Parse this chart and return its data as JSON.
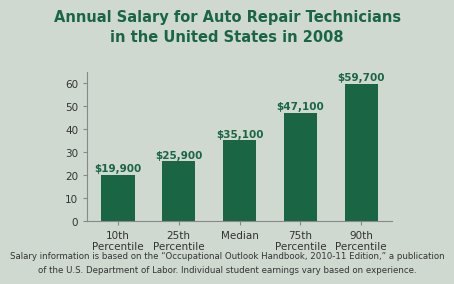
{
  "title": "Annual Salary for Auto Repair Technicians\nin the United States in 2008",
  "categories": [
    "10th\nPercentile",
    "25th\nPercentile",
    "Median",
    "75th\nPercentile",
    "90th\nPercentile"
  ],
  "values": [
    19.9,
    25.9,
    35.1,
    47.1,
    59.7
  ],
  "labels": [
    "$19,900",
    "$25,900",
    "$35,100",
    "$47,100",
    "$59,700"
  ],
  "bar_color": "#1a6644",
  "background_color": "#cfd9d0",
  "title_color": "#1a6644",
  "label_color": "#1a6644",
  "ylim": [
    0,
    65
  ],
  "yticks": [
    0,
    10,
    20,
    30,
    40,
    50,
    60
  ],
  "footnote_line1": "Salary information is based on the “Occupational Outlook Handbook, 2010-11 Edition,” a publication",
  "footnote_line2": "of the U.S. Department of Labor. Individual student earnings vary based on experience.",
  "title_fontsize": 10.5,
  "label_fontsize": 7.5,
  "tick_fontsize": 7.5,
  "footnote_fontsize": 6.2
}
